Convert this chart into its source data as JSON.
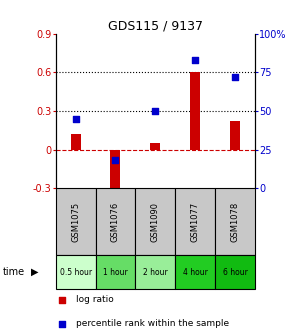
{
  "title": "GDS115 / 9137",
  "categories": [
    "GSM1075",
    "GSM1076",
    "GSM1090",
    "GSM1077",
    "GSM1078"
  ],
  "time_labels": [
    "0.5 hour",
    "1 hour",
    "2 hour",
    "4 hour",
    "6 hour"
  ],
  "log_ratio": [
    0.12,
    -0.38,
    0.05,
    0.6,
    0.22
  ],
  "percentile_rank": [
    45,
    18,
    50,
    83,
    72
  ],
  "bar_color": "#cc0000",
  "dot_color": "#0000cc",
  "ylim_left": [
    -0.3,
    0.9
  ],
  "ylim_right": [
    0,
    100
  ],
  "yticks_left": [
    -0.3,
    0.0,
    0.3,
    0.6,
    0.9
  ],
  "yticks_right": [
    0,
    25,
    50,
    75,
    100
  ],
  "ytick_labels_left": [
    "-0.3",
    "0",
    "0.3",
    "0.6",
    "0.9"
  ],
  "ytick_labels_right": [
    "0",
    "25",
    "50",
    "75",
    "100%"
  ],
  "hlines": [
    0.3,
    0.6
  ],
  "zero_line": 0.0,
  "background_color": "#ffffff",
  "left_axis_color": "#cc0000",
  "right_axis_color": "#0000cc",
  "table_bg_gray": "#c8c8c8",
  "time_colors": [
    "#ddffdd",
    "#77dd77",
    "#aaeea a",
    "#33bb33",
    "#22aa22"
  ],
  "legend_log_ratio": "log ratio",
  "legend_percentile": "percentile rank within the sample"
}
